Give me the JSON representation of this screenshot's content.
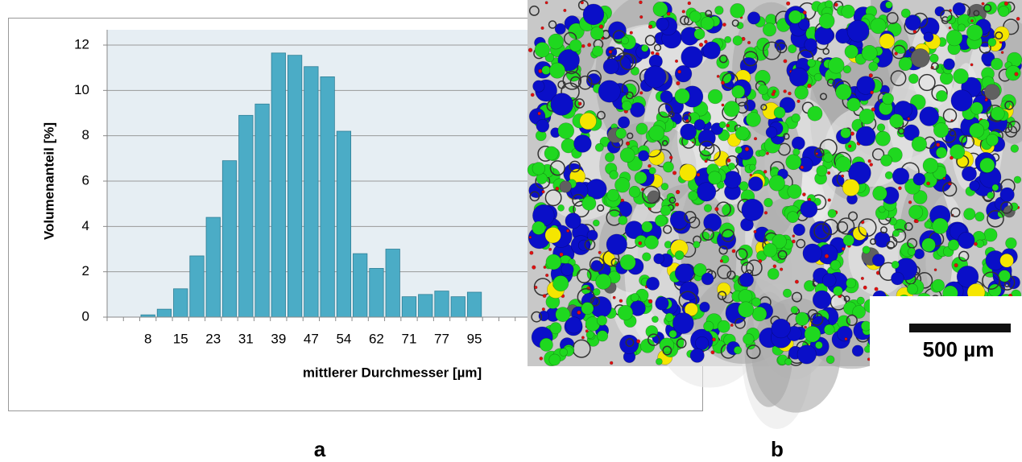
{
  "chart_data": {
    "type": "bar",
    "y_label": "Volumenanteil [%]",
    "x_label": "mittlerer Durchmesser [µm]",
    "categories": [
      null,
      null,
      "8",
      null,
      "15",
      null,
      "23",
      null,
      "31",
      null,
      "39",
      null,
      "47",
      null,
      "54",
      null,
      "62",
      null,
      "71",
      null,
      "77",
      null,
      "95",
      null,
      null,
      null
    ],
    "values": [
      0,
      0,
      0.1,
      0.35,
      1.25,
      2.7,
      4.4,
      6.9,
      8.9,
      9.4,
      11.65,
      11.55,
      11.05,
      10.6,
      8.2,
      2.8,
      2.15,
      3.0,
      0.9,
      1.0,
      1.15,
      0.9,
      1.1,
      0,
      0,
      0
    ],
    "color": "#4bacc6",
    "ylim": [
      0,
      12
    ],
    "yticks": [
      0,
      2,
      4,
      6,
      8,
      10,
      12
    ],
    "grid": true
  },
  "panel_labels": [
    "a",
    "b"
  ],
  "scale_bar_label": "500 µm"
}
